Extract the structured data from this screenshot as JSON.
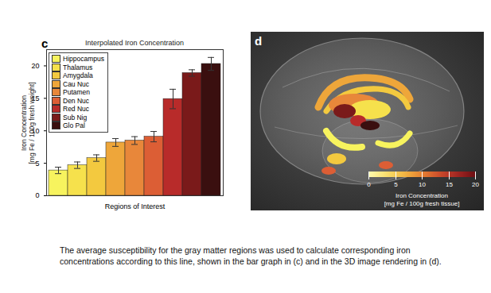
{
  "chart_data": {
    "type": "bar",
    "title": "Interpolated Iron Concentration",
    "xlabel": "Regions of Interest",
    "ylabel": "Iron Concentration\n[mg Fe / 100g fresh weight]",
    "categories": [
      "Hippocampus",
      "Thalamus",
      "Amygdala",
      "Cau Nuc",
      "Putamen",
      "Den Nuc",
      "Red Nuc",
      "Sub Nig",
      "Glo Pal"
    ],
    "values": [
      3.9,
      4.7,
      5.8,
      8.2,
      8.5,
      9.1,
      14.9,
      18.9,
      20.3
    ],
    "errors": [
      0.5,
      0.5,
      0.5,
      0.6,
      0.6,
      0.8,
      1.5,
      0.5,
      1.0
    ],
    "colors": [
      "#f7f35e",
      "#f6e14c",
      "#f3c93f",
      "#eea63a",
      "#e8873a",
      "#dc5e35",
      "#b82b2a",
      "#7a1a1a",
      "#3a0f0f"
    ],
    "ylim": [
      0,
      22.5
    ],
    "yticks": [
      0,
      5,
      10,
      15,
      20
    ],
    "legend": "upper left",
    "tick_labels": "y"
  },
  "panel_labels": [
    "c",
    "d"
  ],
  "rendering": {
    "colorbar": {
      "range": [
        0,
        20
      ],
      "ticks": [
        0,
        5,
        10,
        15,
        20
      ],
      "label": "Iron Concentration\n[mg Fe / 100g fresh tissue]",
      "colors": [
        "#fffbb0",
        "#f6d24a",
        "#e9822f",
        "#c0302a",
        "#6e1014"
      ]
    }
  },
  "caption": "The average susceptibility for the gray matter regions was used to calculate corresponding iron concentrations according to this line, shown in the bar graph in (c) and in the 3D image rendering in (d)."
}
